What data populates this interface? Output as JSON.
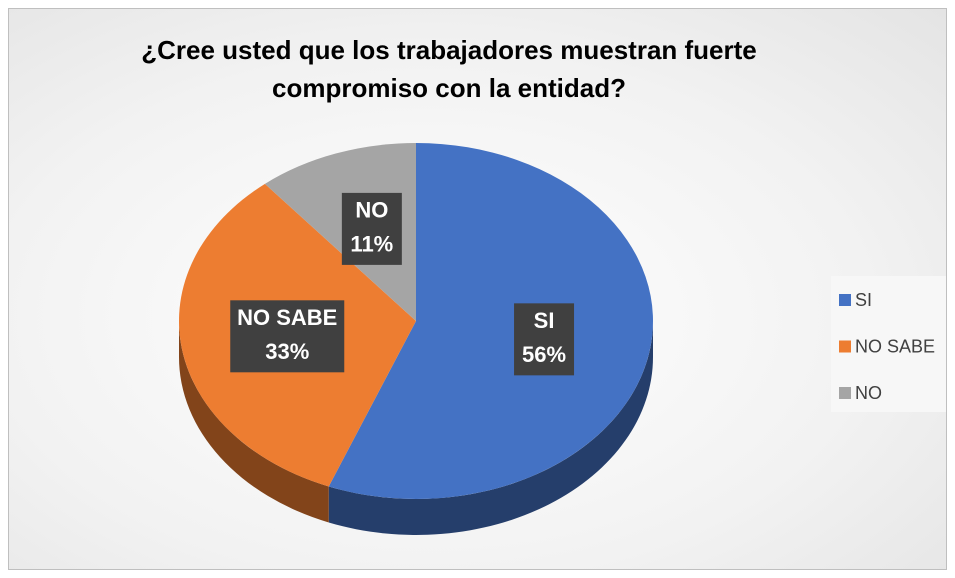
{
  "chart_data": {
    "type": "pie",
    "title": "¿Cree usted que los trabajadores muestran fuerte compromiso con la entidad?",
    "categories": [
      "SI",
      "NO SABE",
      "NO"
    ],
    "values": [
      56,
      33,
      11
    ],
    "value_labels": [
      "56%",
      "33%",
      "11%"
    ],
    "colors": [
      "#4472c4",
      "#ed7d31",
      "#a5a5a5"
    ],
    "legend": "right"
  }
}
